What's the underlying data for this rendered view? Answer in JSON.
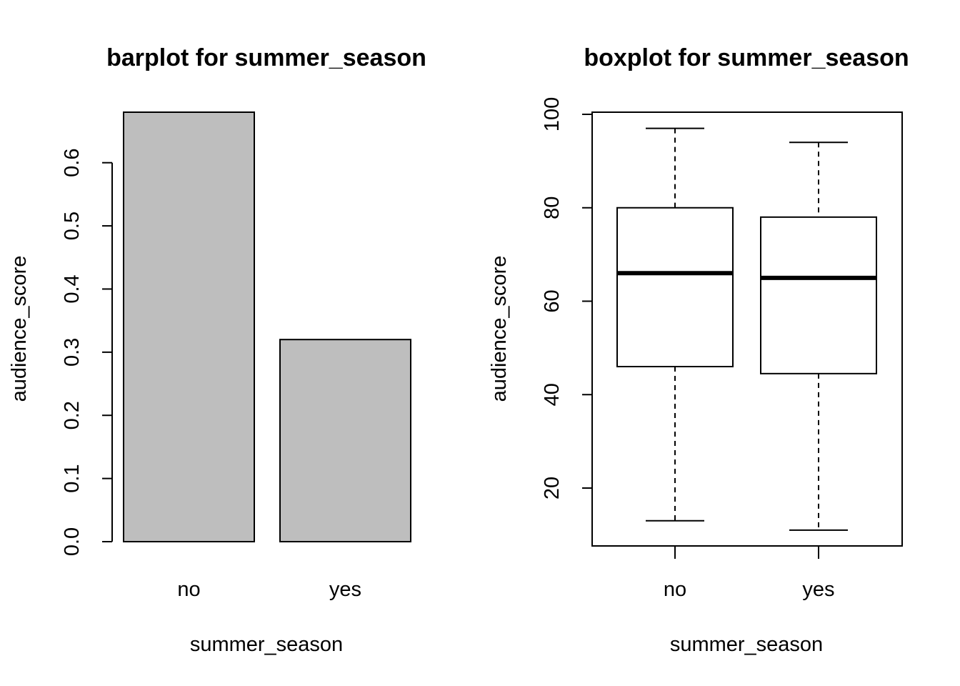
{
  "chart_data": [
    {
      "type": "bar",
      "title": "barplot for summer_season",
      "xlabel": "summer_season",
      "ylabel": "audience_score",
      "categories": [
        "no",
        "yes"
      ],
      "values": [
        0.68,
        0.32
      ],
      "ylim": [
        0,
        0.68
      ],
      "yticks": [
        "0.0",
        "0.1",
        "0.2",
        "0.3",
        "0.4",
        "0.5",
        "0.6"
      ],
      "colors": {
        "bar": "#bebebe",
        "border": "#000000"
      },
      "grid": false
    },
    {
      "type": "box",
      "title": "boxplot for summer_season",
      "xlabel": "summer_season",
      "ylabel": "audience_score",
      "categories": [
        "no",
        "yes"
      ],
      "boxes": [
        {
          "min": 13,
          "q1": 46,
          "median": 66,
          "q3": 80,
          "max": 97
        },
        {
          "min": 11,
          "q1": 44.5,
          "median": 65,
          "q3": 78,
          "max": 94
        }
      ],
      "ylim": [
        8,
        100
      ],
      "yticks": [
        "20",
        "40",
        "60",
        "80",
        "100"
      ],
      "colors": {
        "box": "#ffffff",
        "border": "#000000"
      },
      "grid": false
    }
  ]
}
